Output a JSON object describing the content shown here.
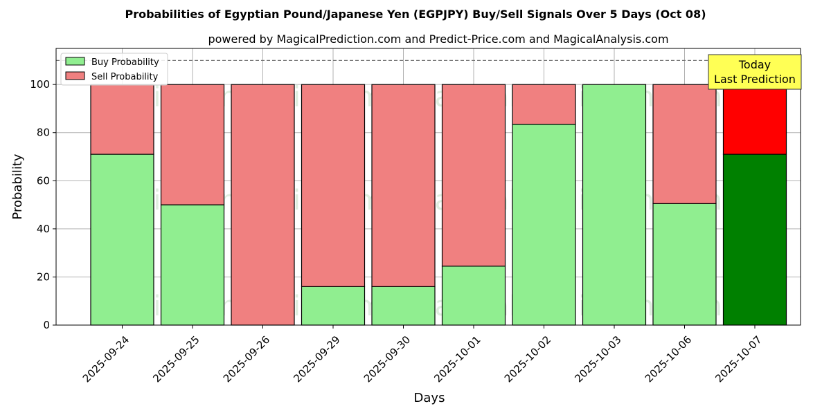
{
  "chart_data": {
    "type": "bar",
    "stacked": true,
    "title": "Probabilities of Egyptian Pound/Japanese Yen (EGPJPY) Buy/Sell Signals Over 5 Days (Oct 08)",
    "subtitle": "powered by MagicalPrediction.com and Predict-Price.com and MagicalAnalysis.com",
    "xlabel": "Days",
    "ylabel": "Probability",
    "ylim": [
      0,
      115
    ],
    "yticks": [
      0,
      20,
      40,
      60,
      80,
      100
    ],
    "grid": true,
    "reference_line": 110,
    "categories": [
      "2025-09-24",
      "2025-09-25",
      "2025-09-26",
      "2025-09-29",
      "2025-09-30",
      "2025-10-01",
      "2025-10-02",
      "2025-10-03",
      "2025-10-06",
      "2025-10-07"
    ],
    "series": [
      {
        "name": "Buy Probability",
        "values": [
          71,
          50,
          0,
          16,
          16,
          24.5,
          83.5,
          100,
          50.5,
          71
        ]
      },
      {
        "name": "Sell Probability",
        "values": [
          29,
          50,
          100,
          84,
          84,
          75.5,
          16.5,
          0,
          49.5,
          29
        ]
      }
    ],
    "colors": {
      "buy": "#90ee90",
      "sell": "#f08080",
      "buy_highlight": "#008000",
      "sell_highlight": "#ff0000",
      "annotation_bg": "#ffff55"
    },
    "highlight_index": 9,
    "annotation": {
      "line1": "Today",
      "line2": "Last Prediction"
    },
    "legend_position": "top-left",
    "watermarks": [
      "MagicalAnalysis.com",
      "MagicalPrediction.com"
    ]
  }
}
